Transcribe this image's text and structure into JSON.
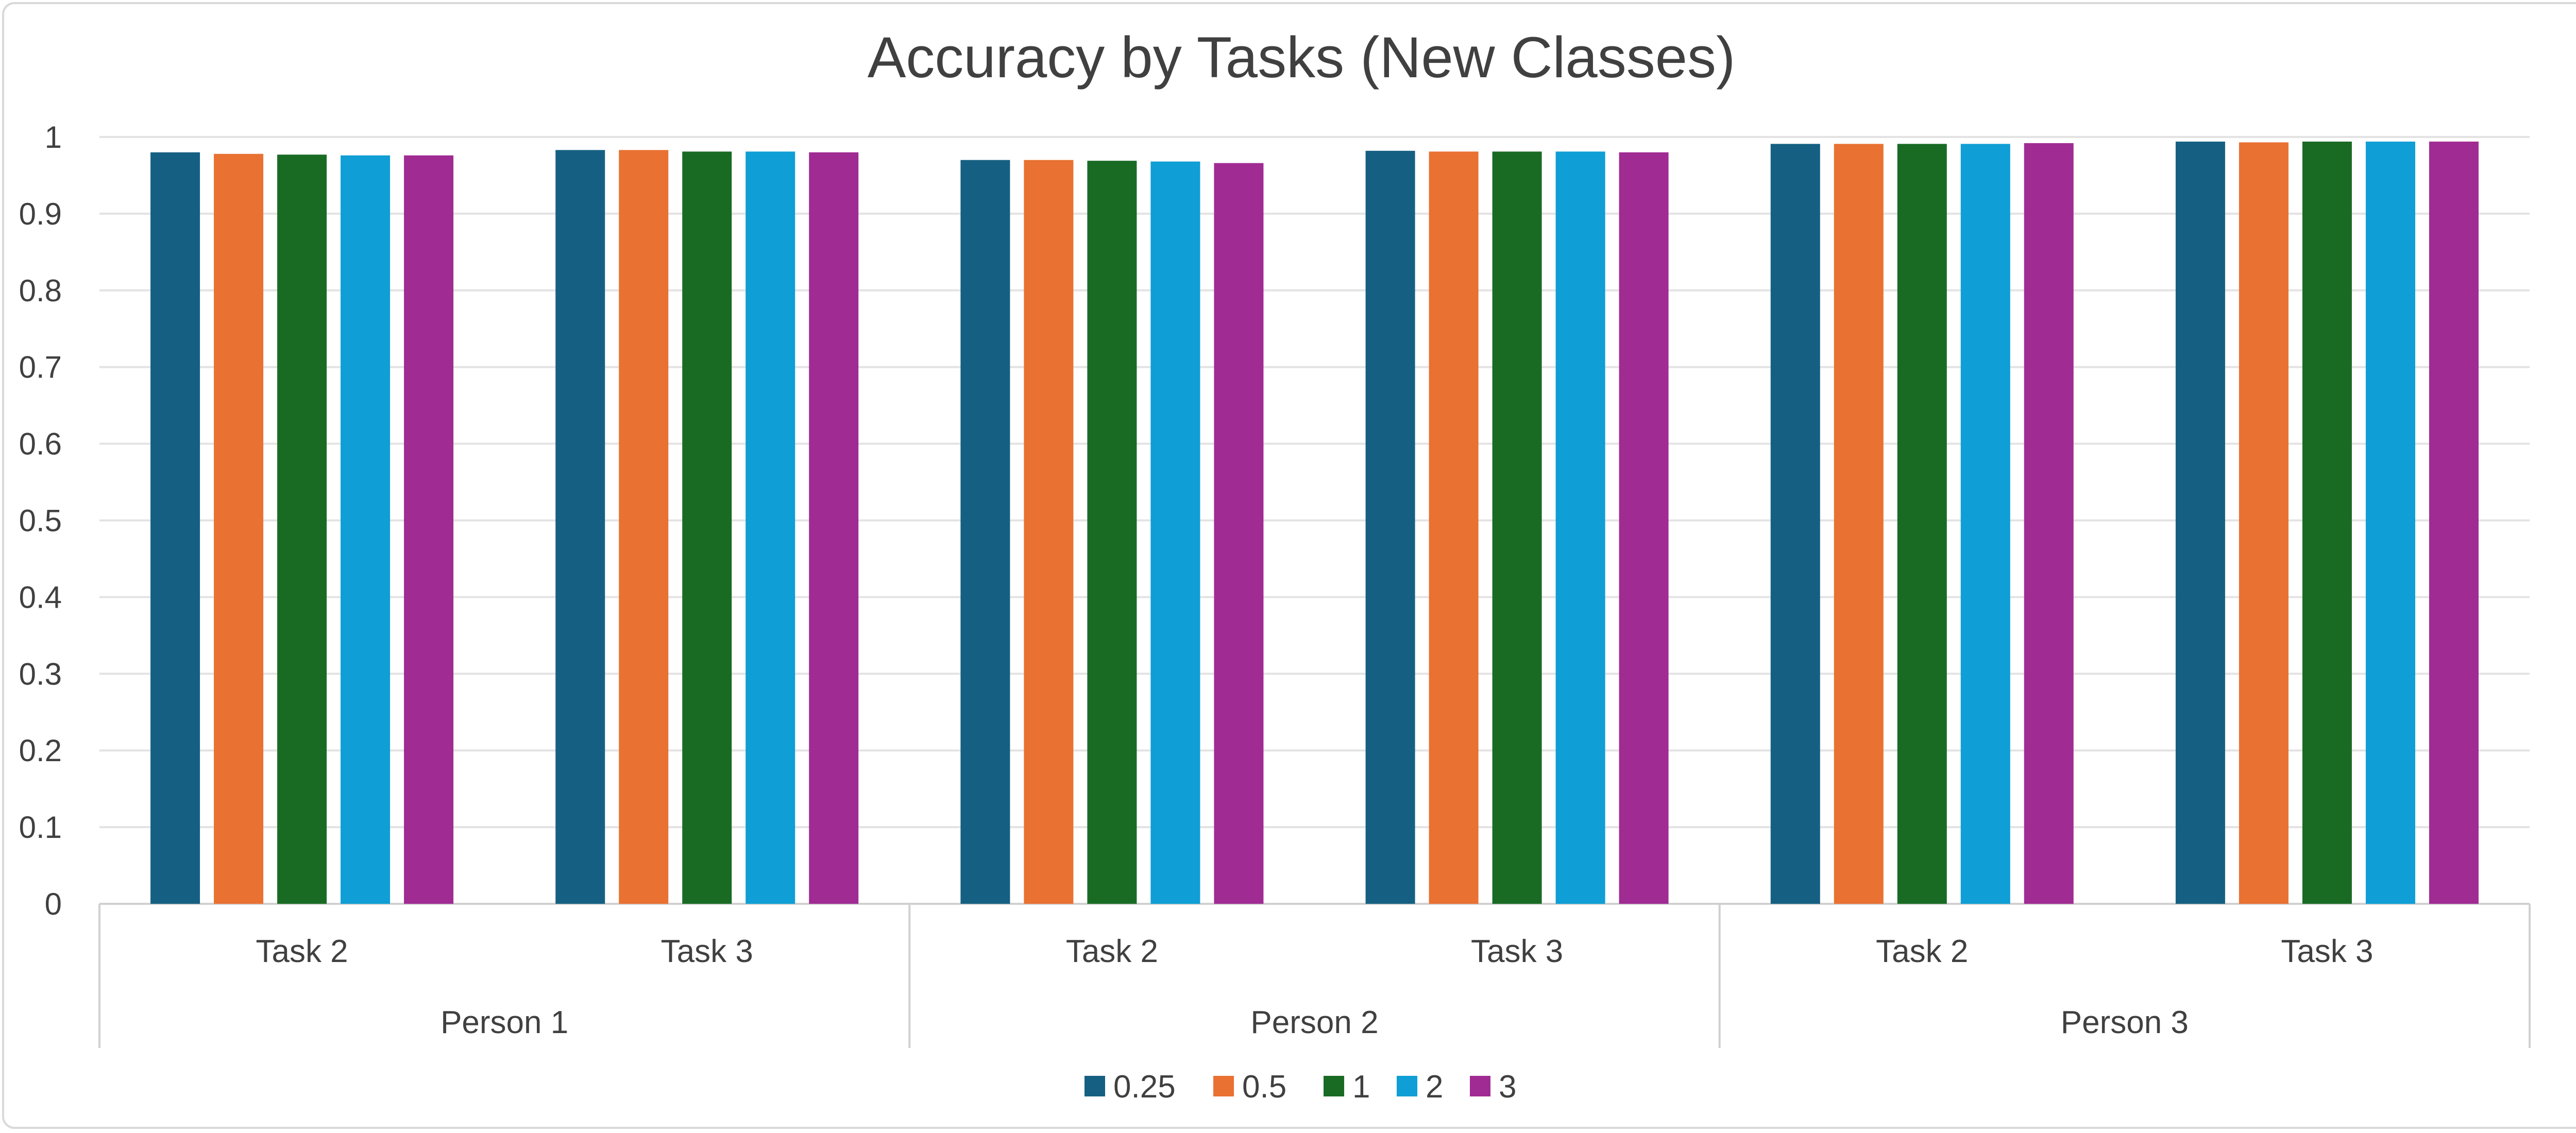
{
  "chart_data": {
    "type": "bar",
    "title": "Accuracy by Tasks (New Classes)",
    "xlabel": "",
    "ylabel": "",
    "ylim": [
      0,
      1
    ],
    "yticks": [
      "0",
      "0.1",
      "0.2",
      "0.3",
      "0.4",
      "0.5",
      "0.6",
      "0.7",
      "0.8",
      "0.9",
      "1"
    ],
    "grid": true,
    "legend_position": "bottom",
    "groups": [
      "Person 1",
      "Person 2",
      "Person 3"
    ],
    "categories": [
      "Task 2",
      "Task 3",
      "Task 2",
      "Task 3",
      "Task 2",
      "Task 3"
    ],
    "series": [
      {
        "name": "0.25",
        "color": "#156082",
        "values": [
          0.98,
          0.983,
          0.97,
          0.982,
          0.991,
          0.994
        ]
      },
      {
        "name": "0.5",
        "color": "#E97132",
        "values": [
          0.978,
          0.983,
          0.97,
          0.981,
          0.991,
          0.993
        ]
      },
      {
        "name": "1",
        "color": "#196B24",
        "values": [
          0.977,
          0.981,
          0.969,
          0.981,
          0.991,
          0.994
        ]
      },
      {
        "name": "2",
        "color": "#0F9ED5",
        "values": [
          0.976,
          0.981,
          0.968,
          0.981,
          0.991,
          0.994
        ]
      },
      {
        "name": "3",
        "color": "#A02B93",
        "values": [
          0.976,
          0.98,
          0.966,
          0.98,
          0.992,
          0.994
        ]
      }
    ]
  }
}
